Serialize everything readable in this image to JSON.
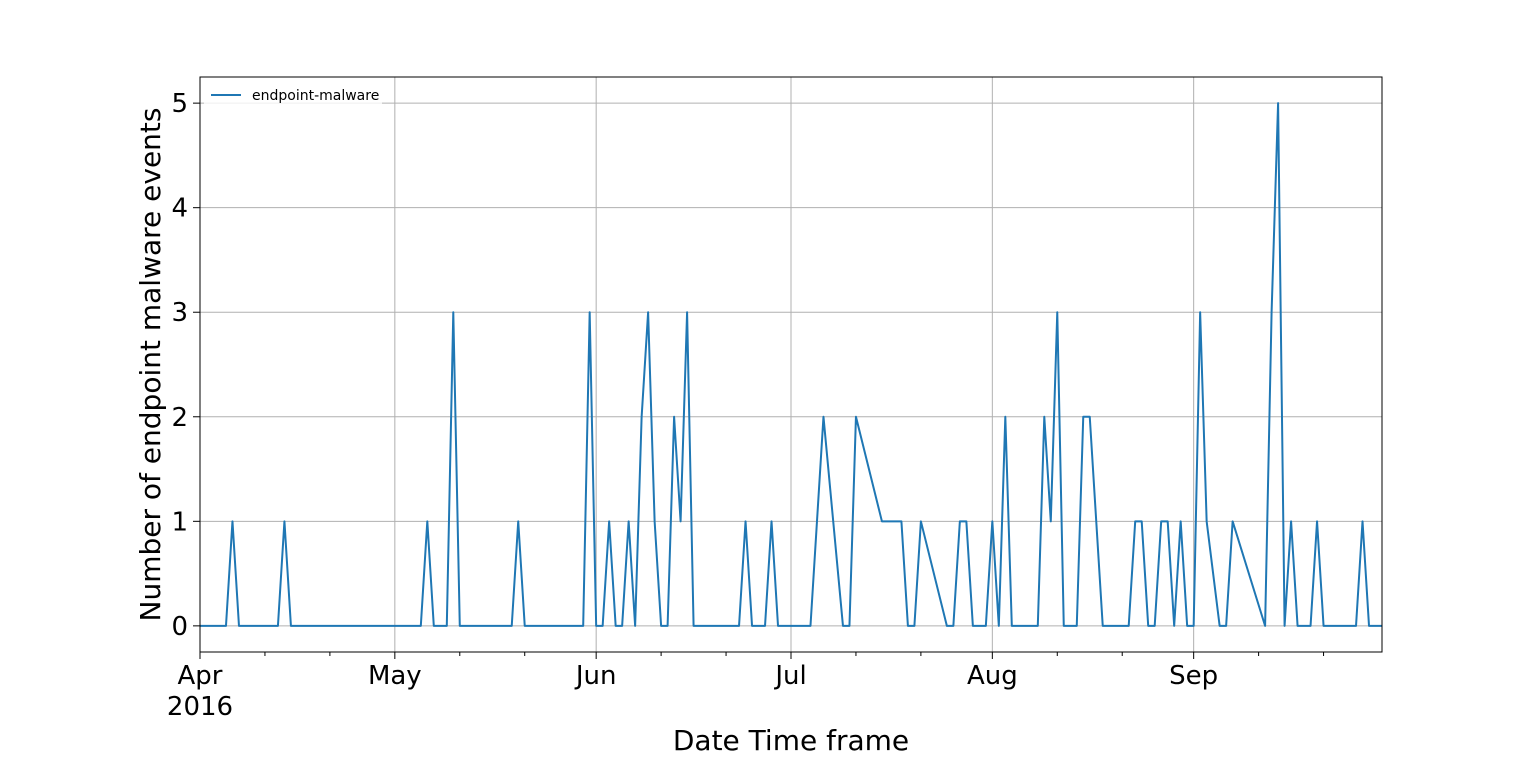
{
  "chart_data": {
    "type": "line",
    "title": "",
    "xlabel": "Date Time frame",
    "ylabel": "Number of endpoint malware events",
    "legend": {
      "placement": "top-left",
      "entries": [
        "endpoint-malware"
      ]
    },
    "grid": true,
    "xlim": [
      "2016-04-01",
      "2016-09-30"
    ],
    "ylim": [
      -0.25,
      5.25
    ],
    "y_ticks": [
      0,
      1,
      2,
      3,
      4,
      5
    ],
    "x_ticks": [
      {
        "date": "2016-04-01",
        "label": "Apr",
        "sublabel": "2016"
      },
      {
        "date": "2016-05-01",
        "label": "May"
      },
      {
        "date": "2016-06-01",
        "label": "Jun"
      },
      {
        "date": "2016-07-01",
        "label": "Jul"
      },
      {
        "date": "2016-08-01",
        "label": "Aug"
      },
      {
        "date": "2016-09-01",
        "label": "Sep"
      }
    ],
    "x_minor_ticks": [
      "2016-04-11",
      "2016-04-21",
      "2016-05-11",
      "2016-05-21",
      "2016-06-11",
      "2016-06-21",
      "2016-07-11",
      "2016-07-21",
      "2016-08-11",
      "2016-08-21",
      "2016-09-11",
      "2016-09-21"
    ],
    "series": [
      {
        "name": "endpoint-malware",
        "color": "#1f77b4",
        "x": [
          "2016-04-01",
          "2016-04-05",
          "2016-04-06",
          "2016-04-07",
          "2016-04-13",
          "2016-04-14",
          "2016-04-15",
          "2016-05-05",
          "2016-05-06",
          "2016-05-07",
          "2016-05-09",
          "2016-05-10",
          "2016-05-11",
          "2016-05-19",
          "2016-05-20",
          "2016-05-21",
          "2016-05-30",
          "2016-05-31",
          "2016-06-01",
          "2016-06-02",
          "2016-06-03",
          "2016-06-04",
          "2016-06-05",
          "2016-06-06",
          "2016-06-07",
          "2016-06-08",
          "2016-06-09",
          "2016-06-10",
          "2016-06-11",
          "2016-06-12",
          "2016-06-13",
          "2016-06-14",
          "2016-06-15",
          "2016-06-16",
          "2016-06-17",
          "2016-06-23",
          "2016-06-24",
          "2016-06-25",
          "2016-06-27",
          "2016-06-28",
          "2016-06-29",
          "2016-07-04",
          "2016-07-05",
          "2016-07-06",
          "2016-07-09",
          "2016-07-10",
          "2016-07-11",
          "2016-07-15",
          "2016-07-16",
          "2016-07-18",
          "2016-07-19",
          "2016-07-20",
          "2016-07-21",
          "2016-07-25",
          "2016-07-26",
          "2016-07-27",
          "2016-07-28",
          "2016-07-29",
          "2016-07-31",
          "2016-08-01",
          "2016-08-02",
          "2016-08-03",
          "2016-08-04",
          "2016-08-08",
          "2016-08-09",
          "2016-08-10",
          "2016-08-11",
          "2016-08-12",
          "2016-08-14",
          "2016-08-15",
          "2016-08-16",
          "2016-08-18",
          "2016-08-21",
          "2016-08-22",
          "2016-08-23",
          "2016-08-24",
          "2016-08-25",
          "2016-08-26",
          "2016-08-27",
          "2016-08-28",
          "2016-08-29",
          "2016-08-30",
          "2016-08-31",
          "2016-09-01",
          "2016-09-02",
          "2016-09-03",
          "2016-09-05",
          "2016-09-06",
          "2016-09-07",
          "2016-09-12",
          "2016-09-13",
          "2016-09-14",
          "2016-09-15",
          "2016-09-16",
          "2016-09-17",
          "2016-09-19",
          "2016-09-20",
          "2016-09-21",
          "2016-09-26",
          "2016-09-27",
          "2016-09-28",
          "2016-09-30"
        ],
        "y": [
          0,
          0,
          1,
          0,
          0,
          1,
          0,
          0,
          1,
          0,
          0,
          3,
          0,
          0,
          1,
          0,
          0,
          3,
          0,
          0,
          1,
          0,
          0,
          1,
          0,
          2,
          3,
          1,
          0,
          0,
          2,
          1,
          3,
          0,
          0,
          0,
          1,
          0,
          0,
          1,
          0,
          0,
          1,
          2,
          0,
          0,
          2,
          1,
          1,
          1,
          0,
          0,
          1,
          0,
          0,
          1,
          1,
          0,
          0,
          1,
          0,
          2,
          0,
          0,
          2,
          1,
          3,
          0,
          0,
          2,
          2,
          0,
          0,
          0,
          1,
          1,
          0,
          0,
          1,
          1,
          0,
          1,
          0,
          0,
          3,
          1,
          0,
          0,
          1,
          0,
          3,
          5,
          0,
          1,
          0,
          0,
          1,
          0,
          0,
          1,
          0,
          0
        ]
      }
    ]
  }
}
